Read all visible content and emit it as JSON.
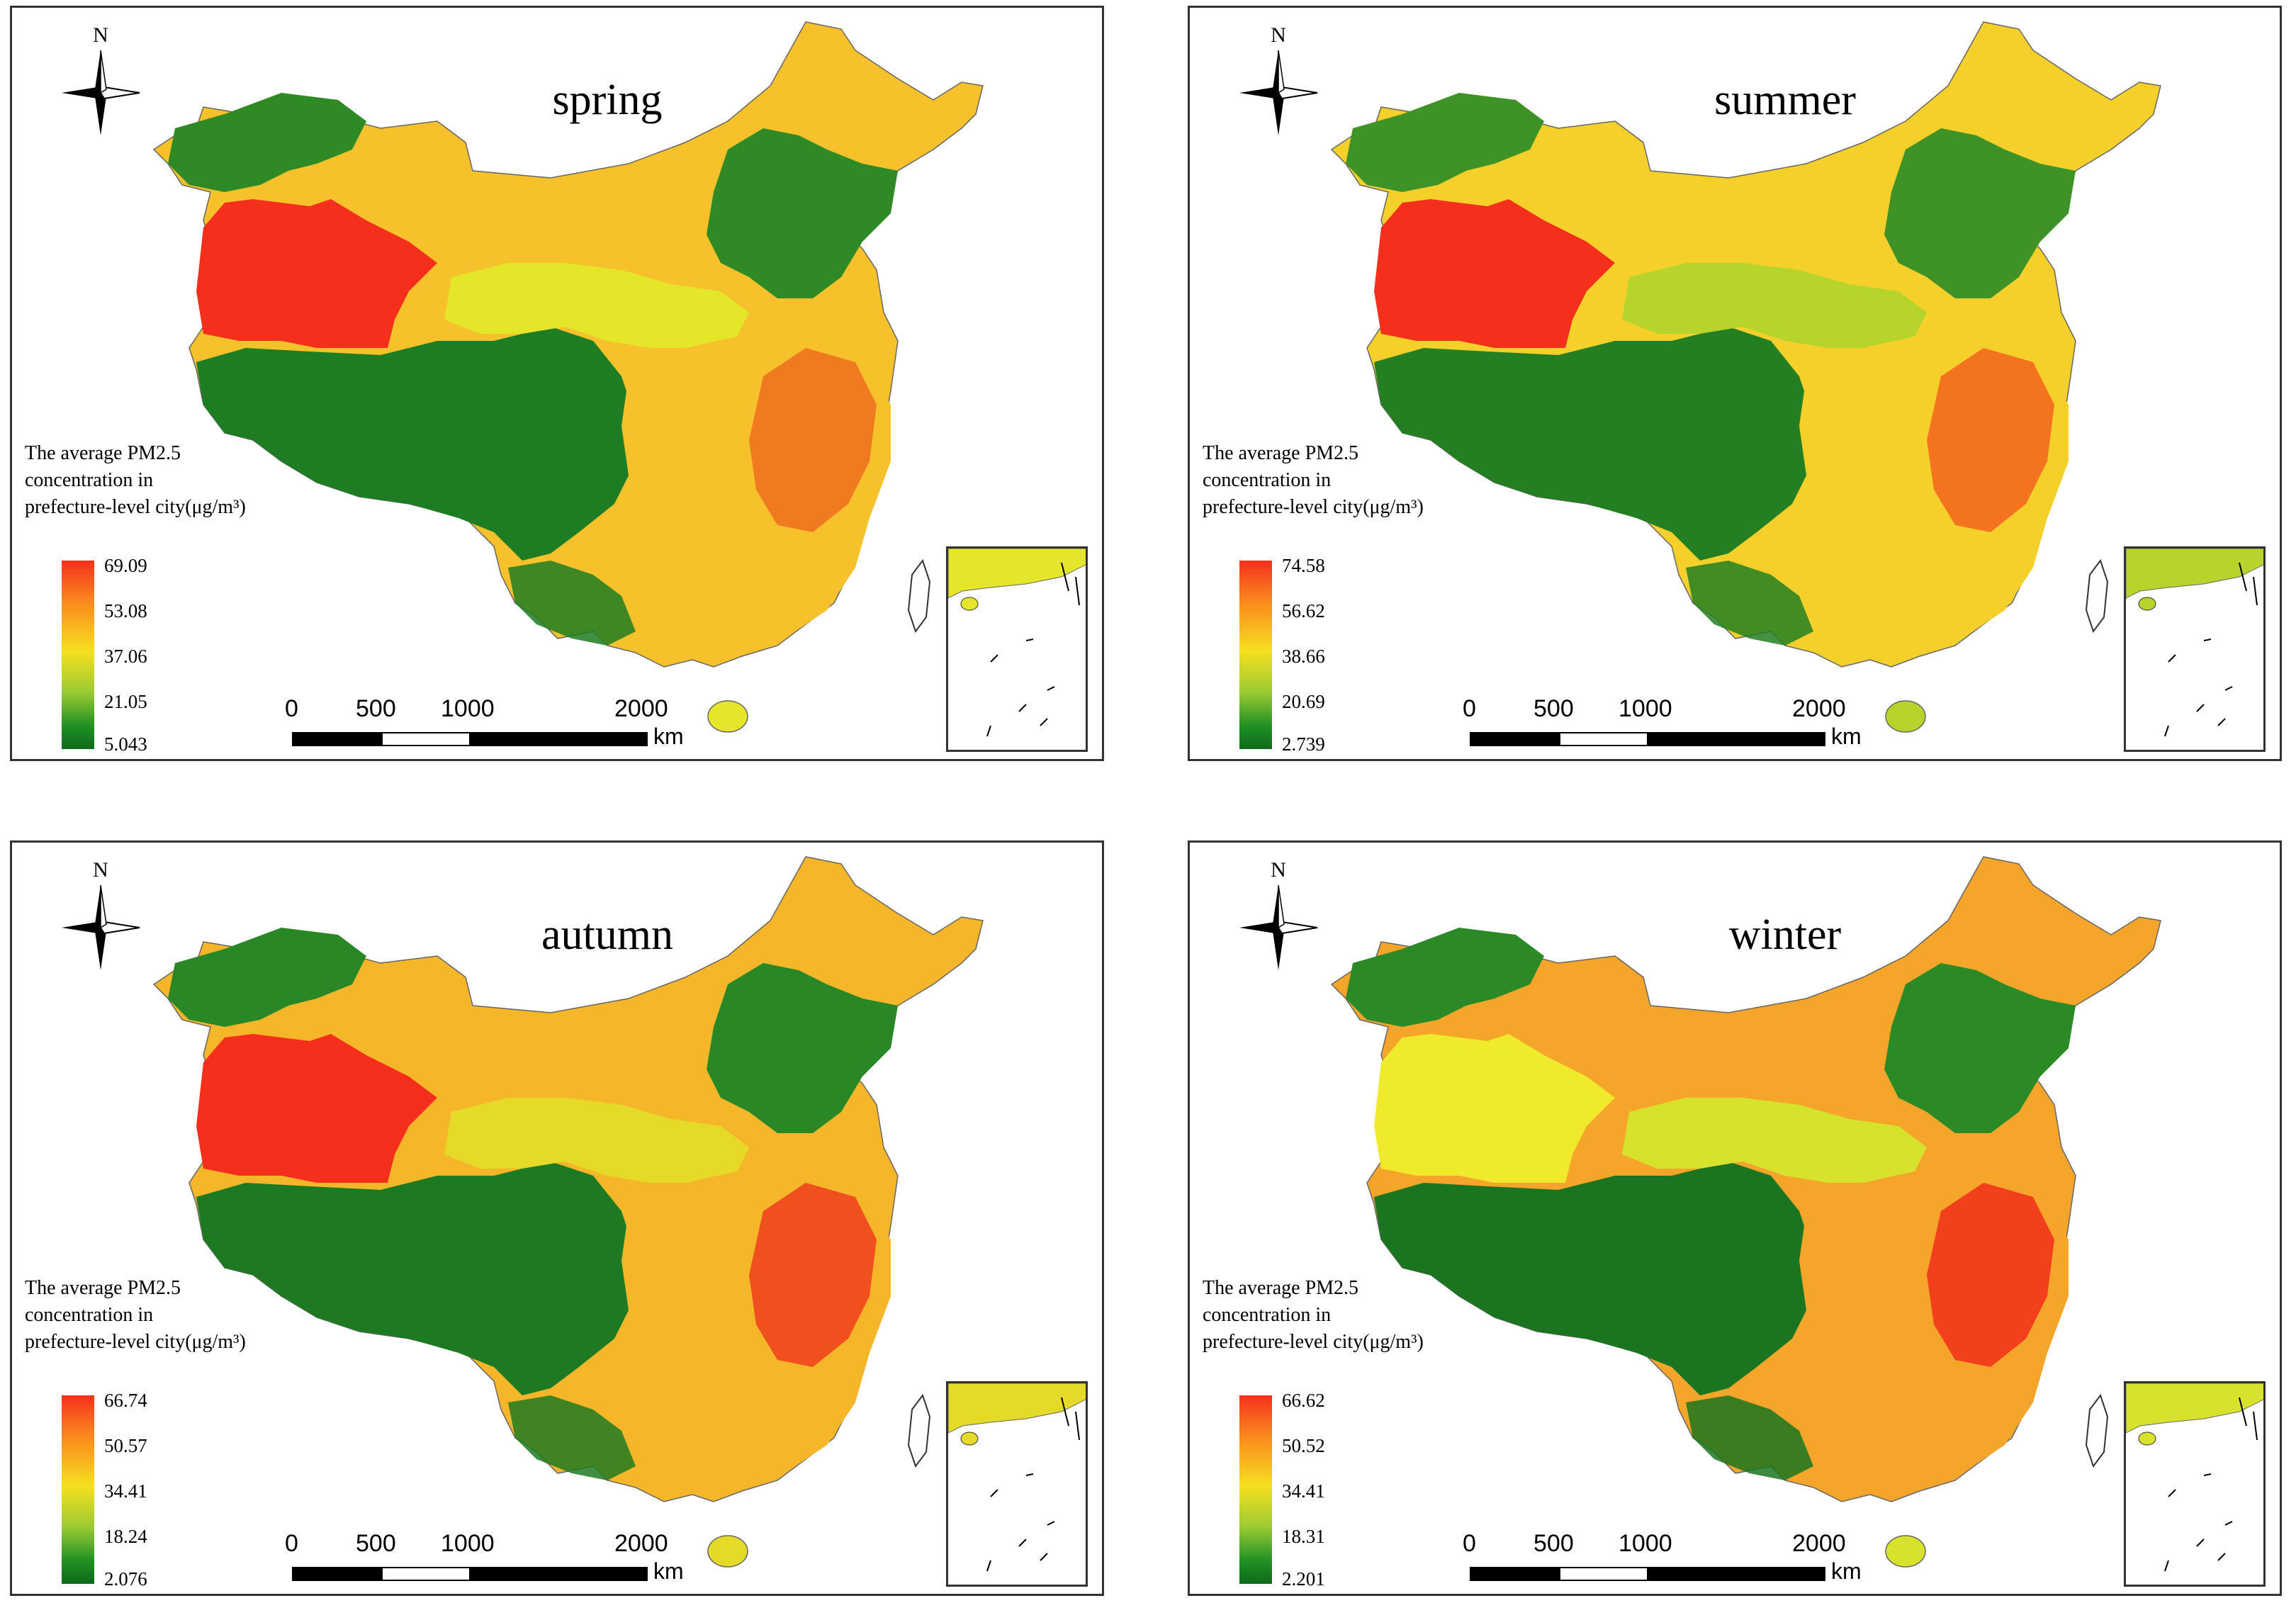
{
  "panels": [
    {
      "season": "spring",
      "legend_title_lines": [
        "The average PM2.5",
        "concentration in",
        "prefecture-level city(μg/m³)"
      ],
      "legend_values": [
        "69.09",
        "53.08",
        "37.06",
        "21.05",
        "5.043"
      ],
      "north_label": "N",
      "scale_labels": [
        "0",
        "500",
        "1000",
        "2000"
      ],
      "scale_unit": "km",
      "colors": {
        "west": "#f4301d",
        "east_core": "#f07a20",
        "east_ring": "#f6c12a",
        "north": "#e5e52a",
        "plateau": "#1d7d22",
        "northeast": "#2f8a25"
      }
    },
    {
      "season": "summer",
      "legend_title_lines": [
        "The average PM2.5",
        "concentration in",
        "prefecture-level city(μg/m³)"
      ],
      "legend_values": [
        "74.58",
        "56.62",
        "38.66",
        "20.69",
        "2.739"
      ],
      "north_label": "N",
      "scale_labels": [
        "0",
        "500",
        "1000",
        "2000"
      ],
      "scale_unit": "km",
      "colors": {
        "west": "#f4301d",
        "east_core": "#f3731f",
        "east_ring": "#f5d02a",
        "north": "#b6d42c",
        "plateau": "#237f22",
        "northeast": "#3f9226"
      }
    },
    {
      "season": "autumn",
      "legend_title_lines": [
        "The average PM2.5",
        "concentration in",
        "prefecture-level city(μg/m³)"
      ],
      "legend_values": [
        "66.74",
        "50.57",
        "34.41",
        "18.24",
        "2.076"
      ],
      "north_label": "N",
      "scale_labels": [
        "0",
        "500",
        "1000",
        "2000"
      ],
      "scale_unit": "km",
      "colors": {
        "west": "#f4301d",
        "east_core": "#f0501e",
        "east_ring": "#f6b62a",
        "north": "#e6da28",
        "plateau": "#1e7a22",
        "northeast": "#2a8725"
      }
    },
    {
      "season": "winter",
      "legend_title_lines": [
        "The average PM2.5",
        "concentration in",
        "prefecture-level city(μg/m³)"
      ],
      "legend_values": [
        "66.62",
        "50.52",
        "34.41",
        "18.31",
        "2.201"
      ],
      "north_label": "N",
      "scale_labels": [
        "0",
        "500",
        "1000",
        "2000"
      ],
      "scale_unit": "km",
      "colors": {
        "west": "#f0ea2c",
        "east_core": "#f2401d",
        "east_ring": "#f5a52a",
        "north": "#d7e22c",
        "plateau": "#1a7420",
        "northeast": "#2b8a26"
      }
    }
  ]
}
